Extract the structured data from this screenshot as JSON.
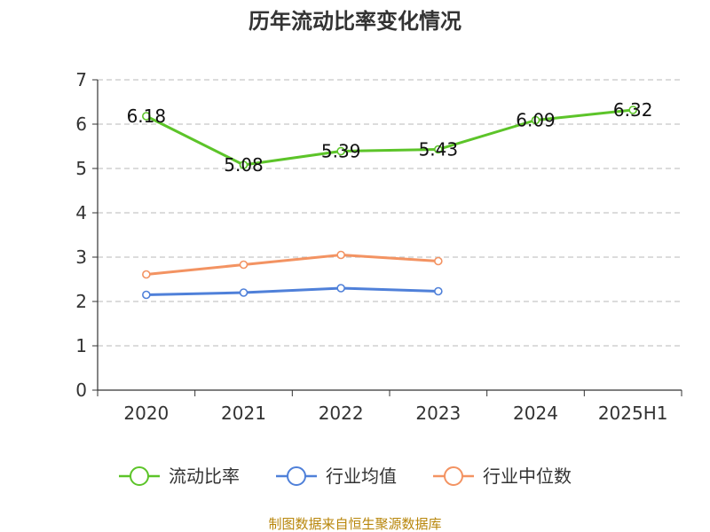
{
  "chart_data": {
    "type": "line",
    "title": "历年流动比率变化情况",
    "categories": [
      "2020",
      "2021",
      "2022",
      "2023",
      "2024",
      "2025H1"
    ],
    "ylim": [
      0,
      7
    ],
    "yticks": [
      0,
      1,
      2,
      3,
      4,
      5,
      6,
      7
    ],
    "grid": true,
    "legend_position": "bottom",
    "series": [
      {
        "name": "流动比率",
        "color": "#5cc429",
        "values": [
          6.18,
          5.08,
          5.39,
          5.43,
          6.09,
          6.32
        ],
        "labels": [
          "6.18",
          "5.08",
          "5.39",
          "5.43",
          "6.09",
          "6.32"
        ]
      },
      {
        "name": "行业均值",
        "color": "#4f80d9",
        "values": [
          2.15,
          2.2,
          2.3,
          2.23,
          null,
          null
        ]
      },
      {
        "name": "行业中位数",
        "color": "#f39362",
        "values": [
          2.61,
          2.83,
          3.05,
          2.91,
          null,
          null
        ]
      }
    ]
  },
  "source": "制图数据来自恒生聚源数据库"
}
